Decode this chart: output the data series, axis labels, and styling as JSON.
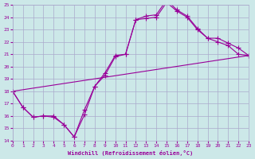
{
  "xlabel": "Windchill (Refroidissement éolien,°C)",
  "bg_color": "#cce8e8",
  "grid_color": "#aaaacc",
  "line_color": "#990099",
  "xlim": [
    0,
    23
  ],
  "ylim": [
    14,
    25
  ],
  "yticks": [
    14,
    15,
    16,
    17,
    18,
    19,
    20,
    21,
    22,
    23,
    24,
    25
  ],
  "xticks": [
    0,
    1,
    2,
    3,
    4,
    5,
    6,
    7,
    8,
    9,
    10,
    11,
    12,
    13,
    14,
    15,
    16,
    17,
    18,
    19,
    20,
    21,
    22,
    23
  ],
  "line1_x": [
    0,
    1,
    2,
    3,
    4,
    5,
    6,
    7,
    8,
    9,
    10,
    11,
    12,
    13,
    14,
    15,
    16,
    17,
    18,
    19,
    20,
    21,
    22,
    23
  ],
  "line1_y": [
    18,
    16.7,
    15.9,
    16.0,
    16.0,
    15.3,
    14.3,
    16.1,
    18.4,
    19.5,
    20.9,
    21.0,
    23.8,
    23.9,
    24.0,
    25.2,
    24.5,
    24.0,
    23.0,
    22.3,
    22.0,
    21.7,
    21.0,
    20.9
  ],
  "line2_x": [
    0,
    1,
    2,
    3,
    4,
    5,
    6,
    7,
    8,
    9,
    10,
    11,
    12,
    13,
    14,
    15,
    16,
    17,
    18,
    19,
    20,
    21,
    22,
    23
  ],
  "line2_y": [
    18,
    16.7,
    15.9,
    16.0,
    15.9,
    15.3,
    14.3,
    16.5,
    18.4,
    19.3,
    20.8,
    21.0,
    23.8,
    24.1,
    24.2,
    25.4,
    24.6,
    24.1,
    23.1,
    22.3,
    22.3,
    21.9,
    21.5,
    20.9
  ],
  "line3_x": [
    0,
    23
  ],
  "line3_y": [
    18,
    20.9
  ]
}
